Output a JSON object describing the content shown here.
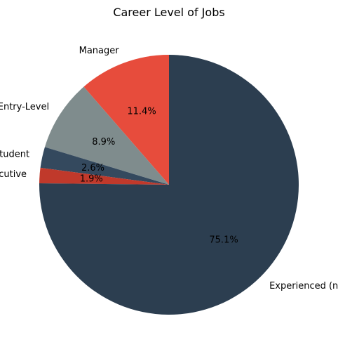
{
  "chart_data": {
    "type": "pie",
    "title": "Career Level of Jobs",
    "start_angle_deg": 90,
    "direction": "counterclockwise",
    "slices": [
      {
        "label": "Manager",
        "percent_label": "11.4%",
        "value": 11.4,
        "color": "#e74c3c"
      },
      {
        "label": "Entry-Level",
        "percent_label": "8.9%",
        "value": 8.9,
        "color": "#7f8c8d"
      },
      {
        "label": "Student",
        "percent_label": "2.6%",
        "value": 2.6,
        "color": "#34495e"
      },
      {
        "label": "Executive",
        "percent_label": "1.9%",
        "value": 1.9,
        "color": "#c0392b"
      },
      {
        "label": "Experienced (non-manager)",
        "percent_label": "75.1%",
        "value": 75.1,
        "color": "#2c3e50"
      }
    ]
  }
}
